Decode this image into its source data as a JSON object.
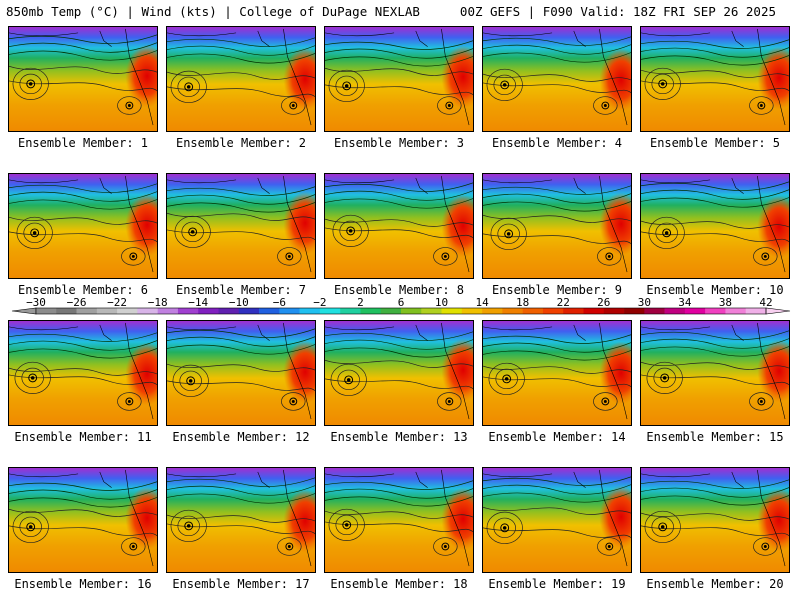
{
  "header": {
    "left": "850mb Temp (°C) | Wind (kts) | College of DuPage NEXLAB",
    "right": "00Z GEFS | F090 Valid: 18Z FRI SEP 26 2025"
  },
  "members": [
    {
      "label": "Ensemble Member: 1"
    },
    {
      "label": "Ensemble Member: 2"
    },
    {
      "label": "Ensemble Member: 3"
    },
    {
      "label": "Ensemble Member: 4"
    },
    {
      "label": "Ensemble Member: 5"
    },
    {
      "label": "Ensemble Member: 6"
    },
    {
      "label": "Ensemble Member: 7"
    },
    {
      "label": "Ensemble Member: 8"
    },
    {
      "label": "Ensemble Member: 9"
    },
    {
      "label": "Ensemble Member: 10"
    },
    {
      "label": "Ensemble Member: 11"
    },
    {
      "label": "Ensemble Member: 12"
    },
    {
      "label": "Ensemble Member: 13"
    },
    {
      "label": "Ensemble Member: 14"
    },
    {
      "label": "Ensemble Member: 15"
    },
    {
      "label": "Ensemble Member: 16"
    },
    {
      "label": "Ensemble Member: 17"
    },
    {
      "label": "Ensemble Member: 18"
    },
    {
      "label": "Ensemble Member: 19"
    },
    {
      "label": "Ensemble Member: 20"
    }
  ],
  "colorbar": {
    "labels": [
      "−30",
      "−26",
      "−22",
      "−18",
      "−14",
      "−10",
      "−6",
      "−2",
      "2",
      "6",
      "10",
      "14",
      "18",
      "22",
      "26",
      "30",
      "34",
      "38",
      "42"
    ],
    "colors": [
      "#8c8c8c",
      "#787878",
      "#a0a0a0",
      "#b8b8b8",
      "#d0d0d0",
      "#d8b4e8",
      "#c080e0",
      "#a040d0",
      "#8020c0",
      "#6020b0",
      "#3030c0",
      "#2060e0",
      "#2090f0",
      "#20c0f0",
      "#20e0e0",
      "#20d0a0",
      "#20c060",
      "#40b040",
      "#80c020",
      "#b0d020",
      "#e0e000",
      "#f0c000",
      "#f0a000",
      "#f08000",
      "#f06000",
      "#f04000",
      "#e02000",
      "#d00000",
      "#b00000",
      "#900000",
      "#a00040",
      "#c00080",
      "#e000a0",
      "#f040c0",
      "#f080d8",
      "#f0b0e8"
    ]
  }
}
